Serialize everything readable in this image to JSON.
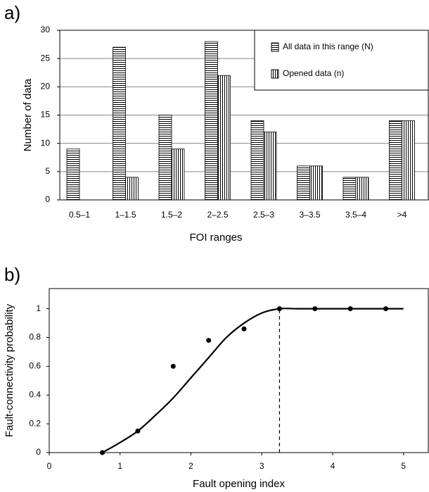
{
  "chart_data": [
    {
      "type": "bar",
      "panel_label": "a)",
      "x_label": "FOI ranges",
      "y_label": "Number of data",
      "categories": [
        "0.5–1",
        "1–1.5",
        "1.5–2",
        "2–2.5",
        "2.5–3",
        "3–3.5",
        "3.5–4",
        ">4"
      ],
      "series": [
        {
          "name": "All data in this range (N)",
          "color": "#000000",
          "pattern": "horizontal",
          "values": [
            9,
            27,
            15,
            28,
            14,
            6,
            4,
            14
          ]
        },
        {
          "name": "Opened data (n)",
          "color": "#000000",
          "pattern": "vertical",
          "values": [
            0,
            4,
            9,
            22,
            12,
            6,
            4,
            14
          ]
        }
      ],
      "ylim": [
        0,
        30
      ],
      "yticks": [
        0,
        5,
        10,
        15,
        20,
        25,
        30
      ],
      "grid": true,
      "legend": "upper right"
    },
    {
      "type": "scatter",
      "panel_label": "b)",
      "x_label": "Fault opening index",
      "y_label": "Fault-connectivity probability",
      "series": [
        {
          "mode": "markers",
          "color": "#000000",
          "x": [
            0.75,
            1.25,
            1.75,
            2.25,
            2.75,
            3.25,
            3.75,
            4.25,
            4.75
          ],
          "values": [
            0,
            0.15,
            0.6,
            0.78,
            0.86,
            1,
            1,
            1,
            1
          ]
        },
        {
          "mode": "line",
          "color": "#000000",
          "x": [
            0.75,
            1.0,
            1.25,
            1.5,
            1.75,
            2.0,
            2.25,
            2.5,
            2.75,
            3.0,
            3.25,
            3.5,
            4.0,
            5.0
          ],
          "values": [
            0,
            0.07,
            0.15,
            0.26,
            0.38,
            0.52,
            0.66,
            0.8,
            0.9,
            0.97,
            1,
            1,
            1,
            1
          ]
        }
      ],
      "threshold_x": 3.25,
      "xlim": [
        0,
        5.35
      ],
      "xticks": [
        0,
        1,
        2,
        3,
        4,
        5
      ],
      "ylim": [
        0,
        1.14
      ],
      "yticks": [
        0,
        0.2,
        0.4,
        0.6,
        0.8,
        1
      ],
      "grid": false
    }
  ]
}
